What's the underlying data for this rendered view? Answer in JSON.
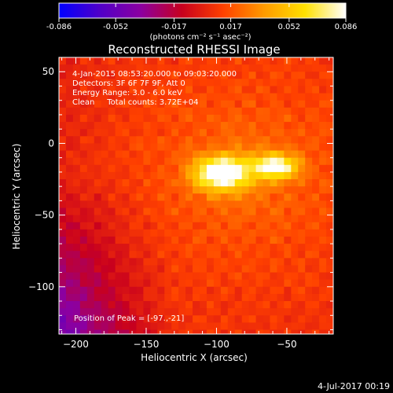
{
  "colorbar": {
    "ticks": [
      "-0.086",
      "-0.052",
      "-0.017",
      "0.017",
      "0.052",
      "0.086"
    ],
    "unit_label": "(photons cm⁻² s⁻¹ asec⁻²)",
    "range": [
      -0.086,
      0.086
    ],
    "colors": [
      "#0000ff",
      "#5000c8",
      "#8c00a0",
      "#c8001e",
      "#ff4000",
      "#ff9a00",
      "#ffe000",
      "#ffffff"
    ]
  },
  "title": "Reconstructed RHESSI Image",
  "info": {
    "line1": "4-Jan-2015 08:53:20.000 to 09:03:20.000",
    "line2": "Detectors: 3F 6F 7F 9F, Att 0",
    "line3": "Energy Range: 3.0 - 6.0 keV",
    "line4": "Clean     Total counts: 3.72E+04",
    "peak": "Position of Peak = [-97.,-21]"
  },
  "xlabel": "Heliocentric X (arcsec)",
  "ylabel": "Heliocentric Y (arcsec)",
  "footer_date": "4-Jul-2017 00:19",
  "chart_data": {
    "type": "heatmap",
    "title": "Reconstructed RHESSI Image",
    "xlabel": "Heliocentric X (arcsec)",
    "ylabel": "Heliocentric Y (arcsec)",
    "xlim": [
      -212,
      -17
    ],
    "ylim": [
      -133,
      60
    ],
    "xticks": [
      -200,
      -150,
      -100,
      -50
    ],
    "yticks": [
      50,
      0,
      -50,
      -100
    ],
    "zlim": [
      -0.086,
      0.086
    ],
    "peak_position": [
      -97,
      -21
    ],
    "sources": [
      {
        "x": -97,
        "y": -21,
        "sx": 13,
        "sy": 8,
        "peak": 0.086
      },
      {
        "x": -58,
        "y": -16,
        "sx": 11,
        "sy": 6,
        "peak": 0.07
      }
    ]
  }
}
